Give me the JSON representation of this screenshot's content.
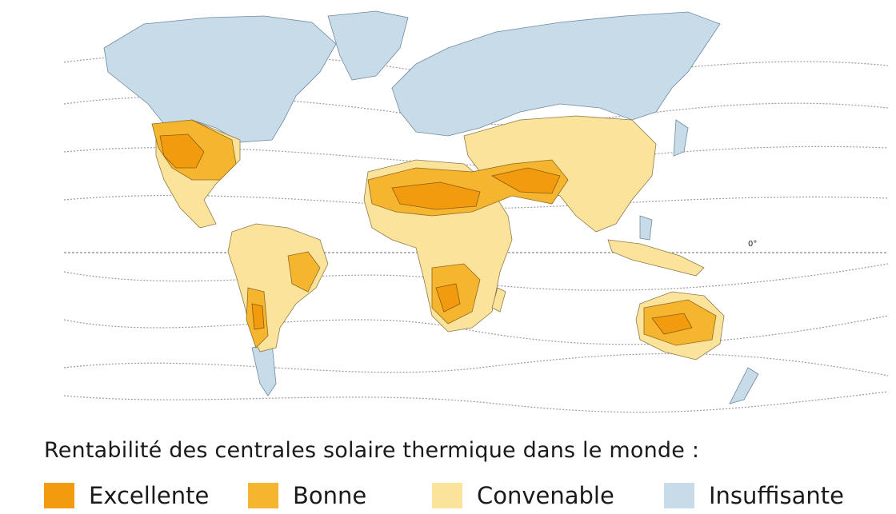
{
  "map": {
    "equator_label": "0°",
    "colors": {
      "excellent": "#f29b0f",
      "good": "#f6b52e",
      "suitable": "#fbe39b",
      "insufficient": "#c7dbe8",
      "borders": "#5a5a5a",
      "isolines": "#9a9a9a"
    }
  },
  "caption": "Rentabilité des centrales solaire thermique dans le monde :",
  "legend": [
    {
      "label": "Excellente",
      "color": "#f29b0f"
    },
    {
      "label": "Bonne",
      "color": "#f6b52e"
    },
    {
      "label": "Convenable",
      "color": "#fbe39b"
    },
    {
      "label": "Insuffisante",
      "color": "#c7dbe8"
    }
  ]
}
